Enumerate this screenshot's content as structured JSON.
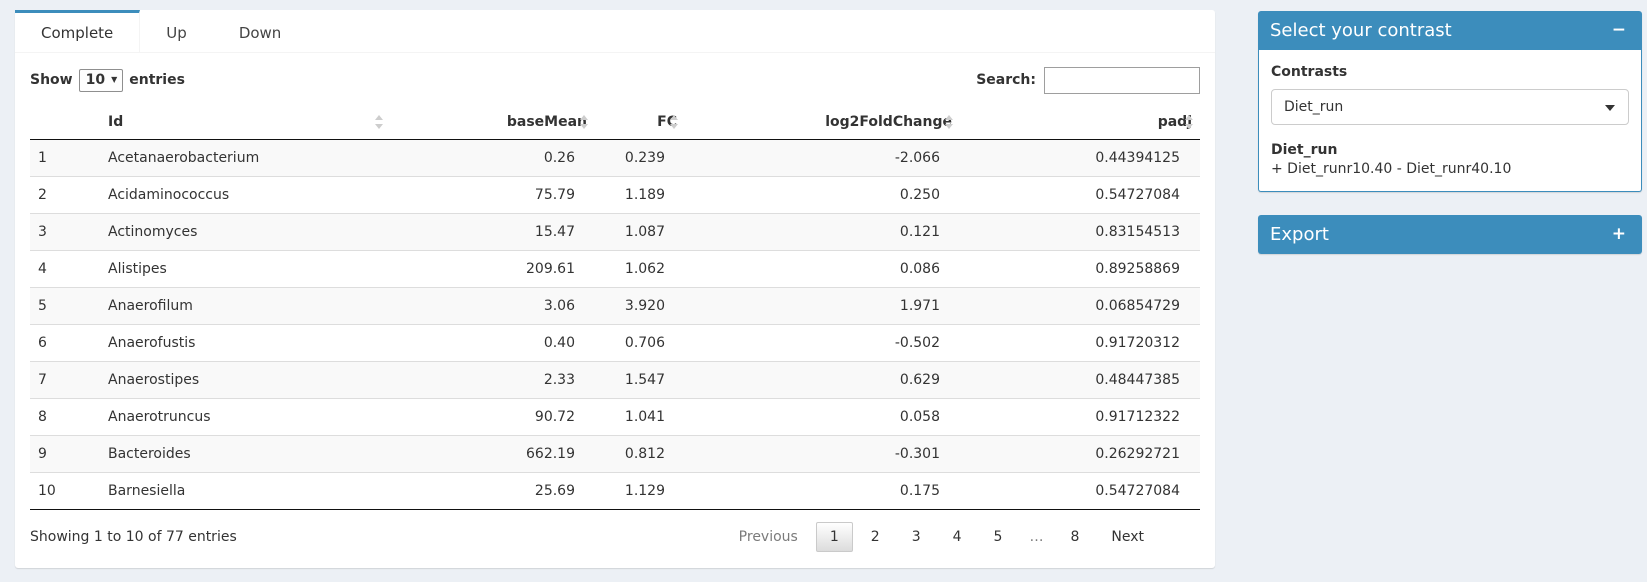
{
  "colors": {
    "primary": "#3c8dbc",
    "page_bg": "#ecf0f5"
  },
  "tabs": {
    "items": [
      {
        "label": "Complete",
        "active": true
      },
      {
        "label": "Up",
        "active": false
      },
      {
        "label": "Down",
        "active": false
      }
    ]
  },
  "controls": {
    "show_label": "Show",
    "length_value": "10",
    "entries_label": "entries",
    "search_label": "Search:",
    "search_value": ""
  },
  "table": {
    "columns": [
      {
        "label": "",
        "key": "num",
        "align": "left",
        "sortable": false
      },
      {
        "label": "Id",
        "key": "id",
        "align": "left",
        "sortable": true
      },
      {
        "label": "baseMean",
        "key": "baseMean",
        "align": "right",
        "sortable": true
      },
      {
        "label": "FC",
        "key": "fc",
        "align": "right",
        "sortable": true
      },
      {
        "label": "log2FoldChange",
        "key": "log2fc",
        "align": "right",
        "sortable": true
      },
      {
        "label": "padj",
        "key": "padj",
        "align": "right",
        "sortable": true
      }
    ],
    "rows": [
      [
        "1",
        "Acetanaerobacterium",
        "0.26",
        "0.239",
        "-2.066",
        "0.44394125"
      ],
      [
        "2",
        "Acidaminococcus",
        "75.79",
        "1.189",
        "0.250",
        "0.54727084"
      ],
      [
        "3",
        "Actinomyces",
        "15.47",
        "1.087",
        "0.121",
        "0.83154513"
      ],
      [
        "4",
        "Alistipes",
        "209.61",
        "1.062",
        "0.086",
        "0.89258869"
      ],
      [
        "5",
        "Anaerofilum",
        "3.06",
        "3.920",
        "1.971",
        "0.06854729"
      ],
      [
        "6",
        "Anaerofustis",
        "0.40",
        "0.706",
        "-0.502",
        "0.91720312"
      ],
      [
        "7",
        "Anaerostipes",
        "2.33",
        "1.547",
        "0.629",
        "0.48447385"
      ],
      [
        "8",
        "Anaerotruncus",
        "90.72",
        "1.041",
        "0.058",
        "0.91712322"
      ],
      [
        "9",
        "Bacteroides",
        "662.19",
        "0.812",
        "-0.301",
        "0.26292721"
      ],
      [
        "10",
        "Barnesiella",
        "25.69",
        "1.129",
        "0.175",
        "0.54727084"
      ]
    ]
  },
  "footer": {
    "info": "Showing 1 to 10 of 77 entries",
    "previous_label": "Previous",
    "next_label": "Next",
    "pages": [
      {
        "label": "1",
        "active": true
      },
      {
        "label": "2",
        "active": false
      },
      {
        "label": "3",
        "active": false
      },
      {
        "label": "4",
        "active": false
      },
      {
        "label": "5",
        "active": false
      },
      {
        "label": "…",
        "active": false
      },
      {
        "label": "8",
        "active": false
      }
    ]
  },
  "contrast_box": {
    "title": "Select your contrast",
    "collapse_icon": "−",
    "field_label": "Contrasts",
    "selected_option": "Diet_run",
    "detail_name": "Diet_run",
    "detail_formula": "+ Diet_runr10.40 - Diet_runr40.10"
  },
  "export_box": {
    "title": "Export",
    "collapse_icon": "+"
  }
}
